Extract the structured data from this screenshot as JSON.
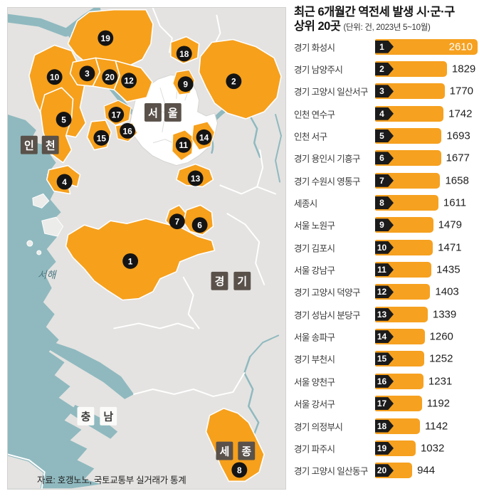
{
  "title": {
    "line1": "최근 6개월간 역전세 발생 시·군·구",
    "line2": "상위 20곳",
    "unit_note": "(단위: 건, 2023년 5~10월)"
  },
  "source": "자료: 호갱노노, 국토교통부 실거래가 통계",
  "colors": {
    "accent_orange": "#F6A01C",
    "marker_black": "#141414",
    "sea_teal": "#8FB9BF",
    "land_gray": "#E4E3E1",
    "label_box_dark": "#59514A",
    "label_box_light": "#FBFBF9"
  },
  "map": {
    "labels": {
      "seoul": [
        "서",
        "울"
      ],
      "incheon": [
        "인",
        "천"
      ],
      "gyeonggi": [
        "경",
        "기"
      ],
      "chungnam": [
        "충",
        "남"
      ],
      "sejong": [
        "세",
        "종"
      ],
      "sea": "서해"
    },
    "markers": [
      "1",
      "2",
      "3",
      "4",
      "5",
      "6",
      "7",
      "8",
      "9",
      "10",
      "11",
      "12",
      "13",
      "14",
      "15",
      "16",
      "17",
      "18",
      "19",
      "20"
    ]
  },
  "chart_data": {
    "type": "bar",
    "title": "최근 6개월간 역전세 발생 시·군·구 상위 20곳",
    "unit": "건",
    "period": "2023년 5~10월",
    "orientation": "horizontal",
    "xlim": [
      0,
      2610
    ],
    "bar_color": "#F6A120",
    "categories": [
      "경기 화성시",
      "경기 남양주시",
      "경기 고양시 일산서구",
      "인천 연수구",
      "인천 서구",
      "경기 용인시 기흥구",
      "경기 수원시 영통구",
      "세종시",
      "서울 노원구",
      "경기 김포시",
      "서울 강남구",
      "경기 고양시 덕양구",
      "경기 성남시 분당구",
      "서울 송파구",
      "경기 부천시",
      "서울 양천구",
      "서울 강서구",
      "경기 의정부시",
      "경기 파주시",
      "경기 고양시 일산동구"
    ],
    "values": [
      2610,
      1829,
      1770,
      1742,
      1693,
      1677,
      1658,
      1611,
      1479,
      1471,
      1435,
      1403,
      1339,
      1260,
      1252,
      1231,
      1192,
      1142,
      1032,
      944
    ],
    "rows": [
      {
        "rank": "1",
        "label": "경기 화성시",
        "value": 2610,
        "value_in_bar": true
      },
      {
        "rank": "2",
        "label": "경기 남양주시",
        "value": 1829
      },
      {
        "rank": "3",
        "label": "경기 고양시 일산서구",
        "value": 1770
      },
      {
        "rank": "4",
        "label": "인천 연수구",
        "value": 1742
      },
      {
        "rank": "5",
        "label": "인천 서구",
        "value": 1693
      },
      {
        "rank": "6",
        "label": "경기 용인시 기흥구",
        "value": 1677
      },
      {
        "rank": "7",
        "label": "경기 수원시 영통구",
        "value": 1658
      },
      {
        "rank": "8",
        "label": "세종시",
        "value": 1611
      },
      {
        "rank": "9",
        "label": "서울 노원구",
        "value": 1479
      },
      {
        "rank": "10",
        "label": "경기 김포시",
        "value": 1471
      },
      {
        "rank": "11",
        "label": "서울 강남구",
        "value": 1435
      },
      {
        "rank": "12",
        "label": "경기 고양시 덕양구",
        "value": 1403
      },
      {
        "rank": "13",
        "label": "경기 성남시 분당구",
        "value": 1339
      },
      {
        "rank": "14",
        "label": "서울 송파구",
        "value": 1260
      },
      {
        "rank": "15",
        "label": "경기 부천시",
        "value": 1252
      },
      {
        "rank": "16",
        "label": "서울 양천구",
        "value": 1231
      },
      {
        "rank": "17",
        "label": "서울 강서구",
        "value": 1192
      },
      {
        "rank": "18",
        "label": "경기 의정부시",
        "value": 1142
      },
      {
        "rank": "19",
        "label": "경기 파주시",
        "value": 1032
      },
      {
        "rank": "20",
        "label": "경기 고양시 일산동구",
        "value": 944
      }
    ]
  }
}
